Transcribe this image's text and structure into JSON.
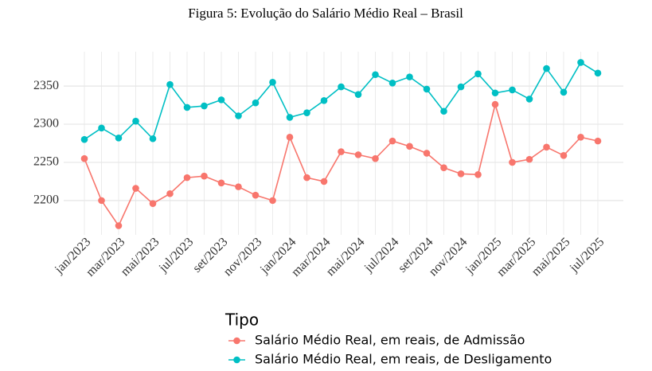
{
  "chart_data": {
    "type": "line",
    "title": "Figura 5: Evolução do Salário Médio Real – Brasil",
    "categories": [
      "jan/2023",
      null,
      "mar/2023",
      null,
      "mai/2023",
      null,
      "jul/2023",
      null,
      "set/2023",
      null,
      "nov/2023",
      null,
      "jan/2024",
      null,
      "mar/2024",
      null,
      "mai/2024",
      null,
      "jul/2024",
      null,
      "set/2024",
      null,
      "nov/2024",
      null,
      "jan/2025",
      null,
      "mar/2025",
      null,
      "mai/2025",
      null,
      "jul/2025"
    ],
    "series": [
      {
        "name": "Salário Médio Real, em reais, de Admissão",
        "color": "#F8766D",
        "values": [
          2255,
          2200,
          2167,
          2216,
          2196,
          2209,
          2230,
          2232,
          2223,
          2218,
          2207,
          2200,
          2283,
          2230,
          2225,
          2264,
          2260,
          2255,
          2278,
          2271,
          2262,
          2243,
          2235,
          2234,
          2326,
          2250,
          2254,
          2270,
          2259,
          2283,
          2278
        ]
      },
      {
        "name": "Salário Médio Real, em reais, de Desligamento",
        "color": "#00BFC4",
        "values": [
          2280,
          2295,
          2282,
          2304,
          2281,
          2352,
          2322,
          2324,
          2332,
          2311,
          2328,
          2355,
          2309,
          2315,
          2331,
          2349,
          2339,
          2365,
          2354,
          2362,
          2346,
          2317,
          2349,
          2366,
          2341,
          2345,
          2333,
          2373,
          2342,
          2381,
          2367
        ]
      }
    ],
    "legend_title": "Tipo",
    "legend": "bottom",
    "ylim": [
      2155,
      2395
    ],
    "yticks": [
      2200,
      2250,
      2300,
      2350
    ],
    "grid": true
  }
}
